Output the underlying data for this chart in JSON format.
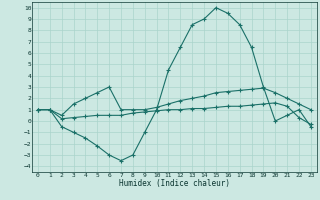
{
  "xlabel": "Humidex (Indice chaleur)",
  "bg_color": "#cce8e2",
  "grid_color": "#aad4cc",
  "line_color": "#1a7068",
  "xlim": [
    -0.5,
    23.5
  ],
  "ylim": [
    -4.5,
    10.5
  ],
  "xticks": [
    0,
    1,
    2,
    3,
    4,
    5,
    6,
    7,
    8,
    9,
    10,
    11,
    12,
    13,
    14,
    15,
    16,
    17,
    18,
    19,
    20,
    21,
    22,
    23
  ],
  "yticks": [
    -4,
    -3,
    -2,
    -1,
    0,
    1,
    2,
    3,
    4,
    5,
    6,
    7,
    8,
    9,
    10
  ],
  "line_peak_x": [
    0,
    1,
    2,
    3,
    4,
    5,
    6,
    7,
    8,
    9,
    10,
    11,
    12,
    13,
    14,
    15,
    16,
    17,
    18,
    19,
    20,
    21,
    22,
    23
  ],
  "line_peak_y": [
    1.0,
    1.0,
    -0.5,
    -1.0,
    -1.5,
    -2.2,
    -3.0,
    -3.5,
    -3.0,
    -1.0,
    1.0,
    4.5,
    6.5,
    8.5,
    9.0,
    10.0,
    9.5,
    8.5,
    6.5,
    3.0,
    0.0,
    0.5,
    1.0,
    -0.5
  ],
  "line_mid_x": [
    0,
    1,
    2,
    3,
    4,
    5,
    6,
    7,
    8,
    9,
    10,
    11,
    12,
    13,
    14,
    15,
    16,
    17,
    18,
    19,
    20,
    21,
    22,
    23
  ],
  "line_mid_y": [
    1.0,
    1.0,
    0.5,
    1.5,
    2.0,
    2.5,
    3.0,
    1.0,
    1.0,
    1.0,
    1.2,
    1.5,
    1.8,
    2.0,
    2.2,
    2.5,
    2.6,
    2.7,
    2.8,
    2.9,
    2.5,
    2.0,
    1.5,
    1.0
  ],
  "line_flat_x": [
    0,
    1,
    2,
    3,
    4,
    5,
    6,
    7,
    8,
    9,
    10,
    11,
    12,
    13,
    14,
    15,
    16,
    17,
    18,
    19,
    20,
    21,
    22,
    23
  ],
  "line_flat_y": [
    1.0,
    1.0,
    0.2,
    0.3,
    0.4,
    0.5,
    0.5,
    0.5,
    0.7,
    0.8,
    0.9,
    1.0,
    1.0,
    1.1,
    1.1,
    1.2,
    1.3,
    1.3,
    1.4,
    1.5,
    1.6,
    1.3,
    0.3,
    -0.3
  ]
}
